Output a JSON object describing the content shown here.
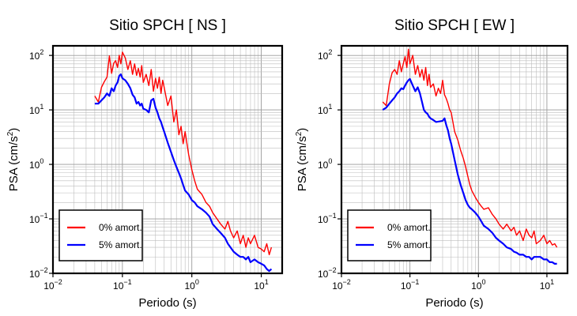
{
  "chart_data": [
    {
      "type": "line",
      "title": "Sitio SPCH [ NS ]",
      "xlabel": "Periodo (s)",
      "ylabel_main": "PSA (cm/s",
      "ylabel_sup": "2",
      "ylabel_tail": ")",
      "xscale": "log",
      "yscale": "log",
      "xlim": [
        0.01,
        20
      ],
      "ylim": [
        0.01,
        150
      ],
      "grid": true,
      "legend_position": "bottom-left",
      "x_ticks": [
        {
          "base": "10",
          "exp": "−2"
        },
        {
          "base": "10",
          "exp": "−1"
        },
        {
          "base": "10",
          "exp": "0"
        },
        {
          "base": "10",
          "exp": "1"
        }
      ],
      "y_ticks": [
        {
          "base": "10",
          "exp": "−2"
        },
        {
          "base": "10",
          "exp": "−1"
        },
        {
          "base": "10",
          "exp": "0"
        },
        {
          "base": "10",
          "exp": "1"
        },
        {
          "base": "10",
          "exp": "2"
        }
      ],
      "series": [
        {
          "name": "0% amort.",
          "color": "#ff0000",
          "x": [
            0.04,
            0.045,
            0.05,
            0.055,
            0.06,
            0.065,
            0.07,
            0.075,
            0.08,
            0.085,
            0.09,
            0.095,
            0.1,
            0.11,
            0.12,
            0.13,
            0.14,
            0.15,
            0.16,
            0.17,
            0.18,
            0.19,
            0.2,
            0.22,
            0.24,
            0.26,
            0.28,
            0.3,
            0.32,
            0.34,
            0.36,
            0.38,
            0.4,
            0.45,
            0.5,
            0.55,
            0.6,
            0.65,
            0.7,
            0.75,
            0.8,
            0.9,
            1.0,
            1.1,
            1.2,
            1.4,
            1.6,
            1.8,
            2.0,
            2.3,
            2.6,
            3.0,
            3.3,
            3.6,
            4.0,
            4.5,
            5.0,
            5.5,
            6.0,
            6.5,
            7.0,
            8.0,
            9.0,
            10.0,
            11.0,
            12.0,
            13.0,
            14.0
          ],
          "y": [
            18,
            14,
            26,
            33,
            40,
            98,
            47,
            72,
            80,
            60,
            100,
            70,
            115,
            90,
            55,
            80,
            45,
            70,
            43,
            58,
            40,
            65,
            32,
            45,
            28,
            55,
            22,
            38,
            25,
            40,
            20,
            35,
            26,
            12,
            18,
            6,
            10,
            3.5,
            5,
            2.4,
            4,
            1.5,
            0.8,
            0.5,
            0.35,
            0.28,
            0.2,
            0.17,
            0.13,
            0.1,
            0.08,
            0.065,
            0.09,
            0.06,
            0.045,
            0.06,
            0.035,
            0.05,
            0.03,
            0.045,
            0.035,
            0.05,
            0.03,
            0.028,
            0.025,
            0.035,
            0.022,
            0.03
          ]
        },
        {
          "name": "5% amort.",
          "color": "#0000ff",
          "x": [
            0.04,
            0.045,
            0.05,
            0.055,
            0.06,
            0.065,
            0.07,
            0.075,
            0.08,
            0.085,
            0.09,
            0.095,
            0.1,
            0.11,
            0.12,
            0.13,
            0.14,
            0.15,
            0.16,
            0.17,
            0.18,
            0.19,
            0.2,
            0.22,
            0.24,
            0.26,
            0.28,
            0.3,
            0.32,
            0.34,
            0.36,
            0.38,
            0.4,
            0.45,
            0.5,
            0.55,
            0.6,
            0.65,
            0.7,
            0.75,
            0.8,
            0.9,
            1.0,
            1.1,
            1.2,
            1.4,
            1.6,
            1.8,
            2.0,
            2.3,
            2.6,
            3.0,
            3.3,
            3.6,
            4.0,
            4.5,
            5.0,
            5.5,
            6.0,
            6.5,
            7.0,
            8.0,
            9.0,
            10.0,
            11.0,
            12.0,
            13.0,
            14.0
          ],
          "y": [
            13,
            13,
            15,
            17,
            20,
            18,
            25,
            22,
            28,
            32,
            42,
            45,
            38,
            35,
            30,
            25,
            19,
            17,
            13,
            14,
            12,
            13,
            10.5,
            10,
            9,
            15,
            16,
            11,
            9,
            7,
            6,
            4.8,
            4,
            2.5,
            1.7,
            1.2,
            0.9,
            0.7,
            0.55,
            0.42,
            0.33,
            0.28,
            0.22,
            0.2,
            0.17,
            0.15,
            0.13,
            0.11,
            0.08,
            0.065,
            0.055,
            0.045,
            0.035,
            0.03,
            0.025,
            0.022,
            0.02,
            0.02,
            0.018,
            0.02,
            0.016,
            0.018,
            0.016,
            0.015,
            0.014,
            0.012,
            0.011,
            0.012
          ]
        }
      ]
    },
    {
      "type": "line",
      "title": "Sitio SPCH [ EW ]",
      "xlabel": "Periodo (s)",
      "ylabel_main": "PSA (cm/s",
      "ylabel_sup": "2",
      "ylabel_tail": ")",
      "xscale": "log",
      "yscale": "log",
      "xlim": [
        0.01,
        20
      ],
      "ylim": [
        0.01,
        150
      ],
      "grid": true,
      "legend_position": "bottom-left",
      "x_ticks": [
        {
          "base": "10",
          "exp": "−2"
        },
        {
          "base": "10",
          "exp": "−1"
        },
        {
          "base": "10",
          "exp": "0"
        },
        {
          "base": "10",
          "exp": "1"
        }
      ],
      "y_ticks": [
        {
          "base": "10",
          "exp": "−2"
        },
        {
          "base": "10",
          "exp": "−1"
        },
        {
          "base": "10",
          "exp": "0"
        },
        {
          "base": "10",
          "exp": "1"
        },
        {
          "base": "10",
          "exp": "2"
        }
      ],
      "series": [
        {
          "name": "0% amort.",
          "color": "#ff0000",
          "x": [
            0.04,
            0.045,
            0.05,
            0.055,
            0.06,
            0.065,
            0.07,
            0.075,
            0.08,
            0.085,
            0.09,
            0.095,
            0.1,
            0.11,
            0.12,
            0.13,
            0.14,
            0.15,
            0.16,
            0.17,
            0.18,
            0.19,
            0.2,
            0.22,
            0.24,
            0.26,
            0.28,
            0.3,
            0.32,
            0.34,
            0.36,
            0.38,
            0.4,
            0.45,
            0.5,
            0.55,
            0.6,
            0.65,
            0.7,
            0.75,
            0.8,
            0.9,
            1.0,
            1.1,
            1.2,
            1.4,
            1.6,
            1.8,
            2.0,
            2.3,
            2.6,
            3.0,
            3.3,
            3.6,
            4.0,
            4.5,
            5.0,
            5.5,
            6.0,
            6.5,
            7.0,
            8.0,
            9.0,
            10.0,
            11.0,
            12.0,
            13.0,
            14.0
          ],
          "y": [
            14,
            12,
            30,
            48,
            55,
            45,
            80,
            50,
            70,
            95,
            60,
            130,
            70,
            100,
            45,
            65,
            40,
            55,
            35,
            60,
            28,
            45,
            26,
            30,
            18,
            25,
            20,
            35,
            19,
            16,
            13,
            10,
            9,
            4,
            2.8,
            1.8,
            1.3,
            0.9,
            0.6,
            0.42,
            0.33,
            0.25,
            0.2,
            0.17,
            0.15,
            0.16,
            0.12,
            0.1,
            0.08,
            0.065,
            0.08,
            0.06,
            0.07,
            0.05,
            0.06,
            0.04,
            0.065,
            0.05,
            0.045,
            0.06,
            0.035,
            0.04,
            0.05,
            0.035,
            0.04,
            0.033,
            0.035,
            0.03
          ]
        },
        {
          "name": "5% amort.",
          "color": "#0000ff",
          "x": [
            0.04,
            0.045,
            0.05,
            0.055,
            0.06,
            0.065,
            0.07,
            0.075,
            0.08,
            0.085,
            0.09,
            0.095,
            0.1,
            0.11,
            0.12,
            0.13,
            0.14,
            0.15,
            0.16,
            0.17,
            0.18,
            0.19,
            0.2,
            0.22,
            0.24,
            0.26,
            0.28,
            0.3,
            0.32,
            0.34,
            0.36,
            0.38,
            0.4,
            0.45,
            0.5,
            0.55,
            0.6,
            0.65,
            0.7,
            0.75,
            0.8,
            0.9,
            1.0,
            1.1,
            1.2,
            1.4,
            1.6,
            1.8,
            2.0,
            2.3,
            2.6,
            3.0,
            3.3,
            3.6,
            4.0,
            4.5,
            5.0,
            5.5,
            6.0,
            6.5,
            7.0,
            8.0,
            9.0,
            10.0,
            11.0,
            12.0,
            13.0,
            14.0
          ],
          "y": [
            10,
            11,
            13,
            15,
            17,
            20,
            22,
            25,
            24,
            28,
            32,
            35,
            37,
            28,
            22,
            26,
            20,
            14,
            10,
            9,
            8.5,
            7.5,
            7,
            6.5,
            6,
            6.1,
            6.2,
            6.3,
            7,
            5.2,
            4.2,
            3,
            2.4,
            1.2,
            0.65,
            0.42,
            0.3,
            0.22,
            0.18,
            0.16,
            0.15,
            0.13,
            0.11,
            0.09,
            0.075,
            0.065,
            0.055,
            0.045,
            0.04,
            0.035,
            0.03,
            0.028,
            0.025,
            0.024,
            0.022,
            0.022,
            0.02,
            0.02,
            0.018,
            0.02,
            0.02,
            0.02,
            0.018,
            0.018,
            0.016,
            0.016,
            0.015,
            0.015
          ]
        }
      ]
    }
  ]
}
